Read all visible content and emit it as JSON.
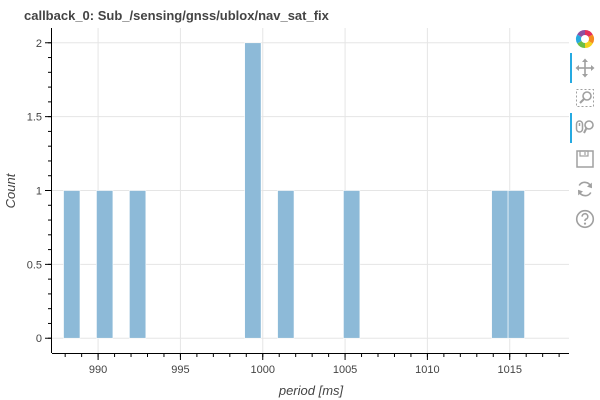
{
  "chart_data": {
    "type": "bar",
    "title": "callback_0: Sub_/sensing/gnss/ublox/nav_sat_fix",
    "xlabel": "period [ms]",
    "ylabel": "Count",
    "xlim": [
      987.2,
      1018.6
    ],
    "ylim": [
      -0.1,
      2.1
    ],
    "xticks": [
      990,
      995,
      1000,
      1005,
      1010,
      1015
    ],
    "xtick_labels": [
      "990",
      "995",
      "1000",
      "1005",
      "1010",
      "1015"
    ],
    "yticks": [
      0,
      0.5,
      1,
      1.5,
      2
    ],
    "ytick_labels": [
      "0",
      "0.5",
      "1",
      "1.5",
      "2"
    ],
    "grid": true,
    "bar_color": "#8dbad8",
    "bins": [
      {
        "left": 987.9,
        "right": 988.9,
        "count": 1
      },
      {
        "left": 989.9,
        "right": 990.9,
        "count": 1
      },
      {
        "left": 991.9,
        "right": 992.9,
        "count": 1
      },
      {
        "left": 998.9,
        "right": 999.9,
        "count": 2
      },
      {
        "left": 1000.9,
        "right": 1001.9,
        "count": 1
      },
      {
        "left": 1004.9,
        "right": 1005.9,
        "count": 1
      },
      {
        "left": 1013.9,
        "right": 1014.9,
        "count": 1
      },
      {
        "left": 1014.9,
        "right": 1015.9,
        "count": 1
      }
    ]
  },
  "toolbar": {
    "tools": [
      {
        "name": "bokeh-logo",
        "icon": "bokeh-logo-icon",
        "active": false
      },
      {
        "name": "pan-tool",
        "icon": "pan-icon",
        "active": true
      },
      {
        "name": "box-zoom-tool",
        "icon": "box-zoom-icon",
        "active": false
      },
      {
        "name": "wheel-zoom-tool",
        "icon": "wheel-zoom-icon",
        "active": true
      },
      {
        "name": "save-tool",
        "icon": "save-icon",
        "active": false
      },
      {
        "name": "reset-tool",
        "icon": "reset-icon",
        "active": false
      },
      {
        "name": "help-tool",
        "icon": "help-icon",
        "active": false
      }
    ]
  }
}
